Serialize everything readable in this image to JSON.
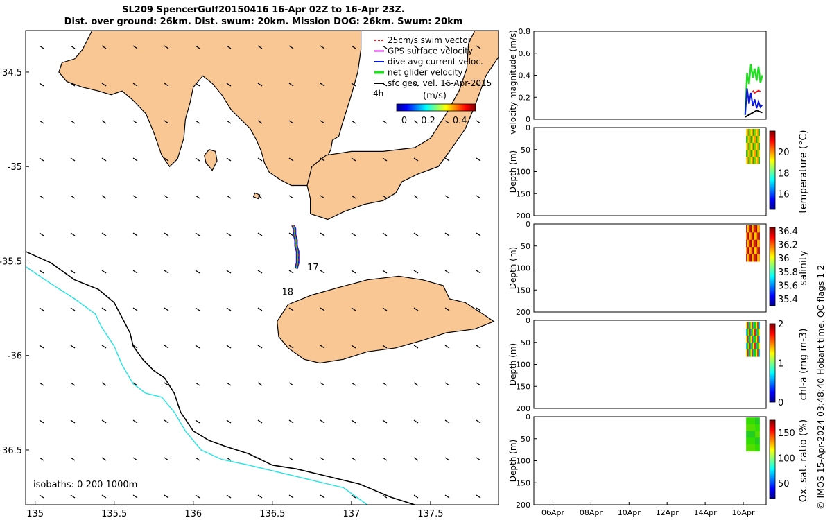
{
  "title": {
    "line1": "SL209 SpencerGulf20150416 16-Apr 02Z to 16-Apr 23Z.",
    "line2": "Dist. over ground: 26km. Dist. swum: 20km. Mission DOG: 26km. Swum: 20km"
  },
  "credit": "© IMOS 15-Apr-2024 03:48:40 Hobart time. QC flags 1  2",
  "colors": {
    "land": "#f9c794",
    "iso0": "#000000",
    "iso200": "#000000",
    "iso1000": "#22e4e4",
    "swim": "#e8141a",
    "gps": "#d416d4",
    "dive_avg": "#0a18e0",
    "net": "#22dd22",
    "sfc": "#000000"
  },
  "chart_data": [
    {
      "type": "map",
      "xlim": [
        134.94,
        137.93
      ],
      "ylim": [
        -36.79,
        -34.28
      ],
      "xticks": [
        135,
        135.5,
        136,
        136.5,
        137,
        137.5
      ],
      "yticks": [
        -34.5,
        -35,
        -35.5,
        -36,
        -36.5
      ],
      "xtick_labels": [
        "135",
        "135.5",
        "136",
        "136.5",
        "137",
        "137.5"
      ],
      "ytick_labels": [
        "-34.5",
        "-35",
        "-35.5",
        "-36",
        "-36.5"
      ],
      "legend": {
        "placement": "top-right",
        "entries": [
          "25cm/s swim vector",
          "GPS surface velocity",
          "dive avg current veloc.",
          "net glider velocity",
          "sfc geo. vel. 16-Apr-2015"
        ]
      },
      "colorbar": {
        "label": "(m/s)",
        "ticks": [
          "0",
          "0.2",
          "0.4"
        ],
        "range": [
          0,
          0.5
        ],
        "note": "4h"
      },
      "isobath_text": "isobaths: 0   200  1000m",
      "track_labels": [
        {
          "text": "17",
          "lon": 136.72,
          "lat": -35.55
        },
        {
          "text": "18",
          "lon": 136.56,
          "lat": -35.68
        }
      ],
      "track": [
        [
          136.63,
          -35.31
        ],
        [
          136.64,
          -35.33
        ],
        [
          136.64,
          -35.36
        ],
        [
          136.65,
          -35.39
        ],
        [
          136.65,
          -35.42
        ],
        [
          136.66,
          -35.45
        ],
        [
          136.66,
          -35.48
        ],
        [
          136.66,
          -35.51
        ],
        [
          136.65,
          -35.54
        ]
      ],
      "land": [
        {
          "name": "Eyre Peninsula",
          "points": [
            [
              135.36,
              -34.28
            ],
            [
              137.06,
              -34.28
            ],
            [
              137.06,
              -34.38
            ],
            [
              137.04,
              -34.5
            ],
            [
              137.0,
              -34.62
            ],
            [
              136.94,
              -34.78
            ],
            [
              136.92,
              -34.84
            ],
            [
              136.88,
              -34.86
            ],
            [
              136.87,
              -34.91
            ],
            [
              136.84,
              -34.96
            ],
            [
              136.82,
              -35.0
            ],
            [
              136.8,
              -35.06
            ],
            [
              136.78,
              -35.1
            ],
            [
              136.62,
              -35.1
            ],
            [
              136.55,
              -35.07
            ],
            [
              136.48,
              -35.03
            ],
            [
              136.45,
              -34.98
            ],
            [
              136.43,
              -34.92
            ],
            [
              136.4,
              -34.86
            ],
            [
              136.36,
              -34.8
            ],
            [
              136.3,
              -34.75
            ],
            [
              136.24,
              -34.7
            ],
            [
              136.18,
              -34.62
            ],
            [
              136.12,
              -34.56
            ],
            [
              136.06,
              -34.52
            ],
            [
              136.0,
              -34.58
            ],
            [
              135.98,
              -34.66
            ],
            [
              135.95,
              -34.75
            ],
            [
              135.94,
              -34.85
            ],
            [
              135.9,
              -34.96
            ],
            [
              135.85,
              -35.0
            ],
            [
              135.8,
              -34.94
            ],
            [
              135.75,
              -34.82
            ],
            [
              135.7,
              -34.72
            ],
            [
              135.62,
              -34.65
            ],
            [
              135.55,
              -34.6
            ],
            [
              135.48,
              -34.62
            ],
            [
              135.4,
              -34.6
            ],
            [
              135.3,
              -34.58
            ],
            [
              135.2,
              -34.55
            ],
            [
              135.15,
              -34.5
            ],
            [
              135.17,
              -34.45
            ],
            [
              135.25,
              -34.43
            ],
            [
              135.3,
              -34.38
            ]
          ]
        },
        {
          "name": "Yorke Peninsula",
          "points": [
            [
              137.93,
              -34.28
            ],
            [
              137.93,
              -34.42
            ],
            [
              137.85,
              -34.52
            ],
            [
              137.78,
              -34.68
            ],
            [
              137.72,
              -34.8
            ],
            [
              137.62,
              -34.92
            ],
            [
              137.55,
              -35.0
            ],
            [
              137.42,
              -35.04
            ],
            [
              137.32,
              -35.08
            ],
            [
              137.28,
              -35.14
            ],
            [
              137.2,
              -35.18
            ],
            [
              137.08,
              -35.2
            ],
            [
              136.95,
              -35.24
            ],
            [
              136.85,
              -35.28
            ],
            [
              136.74,
              -35.25
            ],
            [
              136.74,
              -35.17
            ],
            [
              136.72,
              -35.1
            ],
            [
              136.75,
              -35.0
            ],
            [
              136.84,
              -34.94
            ],
            [
              137.0,
              -34.92
            ],
            [
              137.2,
              -34.92
            ],
            [
              137.4,
              -34.9
            ],
            [
              137.5,
              -34.85
            ],
            [
              137.6,
              -34.72
            ],
            [
              137.68,
              -34.6
            ],
            [
              137.73,
              -34.48
            ],
            [
              137.74,
              -34.35
            ],
            [
              137.78,
              -34.28
            ]
          ]
        },
        {
          "name": "Kangaroo Island",
          "points": [
            [
              136.53,
              -35.82
            ],
            [
              136.6,
              -35.73
            ],
            [
              136.75,
              -35.68
            ],
            [
              136.92,
              -35.64
            ],
            [
              137.1,
              -35.6
            ],
            [
              137.3,
              -35.58
            ],
            [
              137.45,
              -35.6
            ],
            [
              137.58,
              -35.63
            ],
            [
              137.62,
              -35.7
            ],
            [
              137.72,
              -35.72
            ],
            [
              137.83,
              -35.78
            ],
            [
              137.9,
              -35.82
            ],
            [
              137.78,
              -35.86
            ],
            [
              137.6,
              -35.88
            ],
            [
              137.45,
              -35.92
            ],
            [
              137.28,
              -35.96
            ],
            [
              137.1,
              -35.98
            ],
            [
              136.95,
              -36.02
            ],
            [
              136.8,
              -36.04
            ],
            [
              136.7,
              -36.02
            ],
            [
              136.6,
              -35.96
            ],
            [
              136.54,
              -35.9
            ]
          ]
        },
        {
          "name": "Thistle Island",
          "points": [
            [
              136.1,
              -34.91
            ],
            [
              136.14,
              -34.92
            ],
            [
              136.15,
              -34.97
            ],
            [
              136.12,
              -35.02
            ],
            [
              136.08,
              -34.98
            ],
            [
              136.07,
              -34.94
            ]
          ]
        },
        {
          "name": "Wedge Island",
          "points": [
            [
              136.39,
              -35.14
            ],
            [
              136.42,
              -35.15
            ],
            [
              136.41,
              -35.17
            ],
            [
              136.38,
              -35.16
            ]
          ]
        }
      ],
      "isobath_200": [
        [
          134.94,
          -35.45
        ],
        [
          135.1,
          -35.51
        ],
        [
          135.25,
          -35.6
        ],
        [
          135.4,
          -35.65
        ],
        [
          135.5,
          -35.72
        ],
        [
          135.55,
          -35.8
        ],
        [
          135.6,
          -35.88
        ],
        [
          135.62,
          -35.95
        ],
        [
          135.68,
          -36.02
        ],
        [
          135.75,
          -36.08
        ],
        [
          135.82,
          -36.12
        ],
        [
          135.88,
          -36.2
        ],
        [
          135.92,
          -36.3
        ],
        [
          136.0,
          -36.4
        ],
        [
          136.1,
          -36.45
        ],
        [
          136.2,
          -36.48
        ],
        [
          136.35,
          -36.52
        ],
        [
          136.5,
          -36.58
        ],
        [
          136.65,
          -36.6
        ],
        [
          136.85,
          -36.64
        ],
        [
          137.05,
          -36.68
        ],
        [
          137.25,
          -36.75
        ],
        [
          137.4,
          -36.79
        ]
      ],
      "isobath_1000": [
        [
          134.94,
          -35.53
        ],
        [
          135.1,
          -35.62
        ],
        [
          135.25,
          -35.7
        ],
        [
          135.38,
          -35.78
        ],
        [
          135.42,
          -35.85
        ],
        [
          135.5,
          -35.95
        ],
        [
          135.55,
          -36.05
        ],
        [
          135.62,
          -36.15
        ],
        [
          135.7,
          -36.2
        ],
        [
          135.8,
          -36.22
        ],
        [
          135.88,
          -36.3
        ],
        [
          135.95,
          -36.4
        ],
        [
          136.05,
          -36.5
        ],
        [
          136.18,
          -36.55
        ],
        [
          136.35,
          -36.58
        ],
        [
          136.55,
          -36.62
        ],
        [
          136.75,
          -36.66
        ],
        [
          136.95,
          -36.7
        ],
        [
          137.1,
          -36.79
        ]
      ]
    },
    {
      "type": "line",
      "xlim": [
        5.0,
        17.2
      ],
      "ylim": [
        0,
        0.8
      ],
      "yticks": [
        0,
        0.2,
        0.4,
        0.6,
        0.8
      ],
      "ytick_labels": [
        "0",
        "0.2",
        "0.4",
        "0.6",
        "0.8"
      ],
      "ylabel": "velocity magnitude (m/s)",
      "series": [
        {
          "x": [
            16.1,
            16.2,
            16.3,
            16.4,
            16.5,
            16.6,
            16.7,
            16.8,
            16.9,
            17.0
          ],
          "y": [
            0.04,
            0.42,
            0.32,
            0.5,
            0.38,
            0.46,
            0.35,
            0.48,
            0.33,
            0.4
          ],
          "color": "#22dd22"
        },
        {
          "x": [
            16.1,
            16.2,
            16.3,
            16.4,
            16.5,
            16.6,
            16.7,
            16.8,
            16.9,
            17.0
          ],
          "y": [
            0.04,
            0.28,
            0.14,
            0.24,
            0.12,
            0.18,
            0.1,
            0.16,
            0.11,
            0.13
          ],
          "color": "#0a18e0"
        },
        {
          "x": [
            16.1,
            16.4,
            16.7,
            17.0
          ],
          "y": [
            0.02,
            0.05,
            0.08,
            0.06
          ],
          "color": "#000000"
        },
        {
          "x": [
            16.5,
            16.6,
            16.7,
            16.8,
            16.9
          ],
          "y": [
            0.26,
            0.24,
            0.25,
            0.26,
            0.25
          ],
          "color": "#e8141a"
        }
      ]
    },
    {
      "type": "heatmap",
      "ylabel": "Depth (m)",
      "ylim": [
        200,
        0
      ],
      "yticks": [
        0,
        50,
        100,
        150,
        200
      ],
      "xlim": [
        5.0,
        17.2
      ],
      "data_x": [
        16.15,
        16.85
      ],
      "data_depth": [
        3,
        82
      ],
      "colorbar": {
        "label": "temperature (°C)",
        "range": [
          14.5,
          22
        ],
        "ticks": [
          16,
          18,
          20
        ]
      },
      "colors": [
        "#ffdd00",
        "#88cc00",
        "#22aa00",
        "#ff9900"
      ]
    },
    {
      "type": "heatmap",
      "ylabel": "Depth (m)",
      "ylim": [
        200,
        0
      ],
      "yticks": [
        0,
        50,
        100,
        150,
        200
      ],
      "xlim": [
        5.0,
        17.2
      ],
      "data_x": [
        16.15,
        16.85
      ],
      "data_depth": [
        3,
        85
      ],
      "colorbar": {
        "label": "salinity",
        "range": [
          35.3,
          36.45
        ],
        "ticks": [
          35.4,
          35.6,
          35.8,
          36,
          36.2,
          36.4
        ]
      },
      "colors": [
        "#aa0000",
        "#cc2200",
        "#ff8800",
        "#ffcc00"
      ]
    },
    {
      "type": "heatmap",
      "ylabel": "Depth (m)",
      "ylim": [
        200,
        0
      ],
      "yticks": [
        0,
        50,
        100,
        150,
        200
      ],
      "xlim": [
        5.0,
        17.2
      ],
      "data_x": [
        16.15,
        16.85
      ],
      "data_depth": [
        3,
        82
      ],
      "colorbar": {
        "label": "chl-a (mg m-3)",
        "range": [
          0,
          2
        ],
        "ticks": [
          0,
          1,
          2
        ]
      },
      "colors": [
        "#ffdd00",
        "#22cc00",
        "#00bbdd",
        "#cc3300"
      ]
    },
    {
      "type": "heatmap",
      "ylabel": "Depth (m)",
      "ylim": [
        200,
        0
      ],
      "yticks": [
        0,
        50,
        100,
        150,
        200
      ],
      "xlim": [
        5.0,
        17.2
      ],
      "xticks": [
        6,
        8,
        10,
        12,
        14,
        16
      ],
      "xtick_labels": [
        "06Apr",
        "08Apr",
        "10Apr",
        "12Apr",
        "14Apr",
        "16Apr"
      ],
      "data_x": [
        16.15,
        16.85
      ],
      "data_depth": [
        2,
        78
      ],
      "colorbar": {
        "label": "Ox. sat. ratio (%)",
        "range": [
          20,
          175
        ],
        "ticks": [
          50,
          100,
          150
        ]
      },
      "colors": [
        "#33dd00",
        "#22cc22",
        "#55dd00"
      ]
    }
  ]
}
